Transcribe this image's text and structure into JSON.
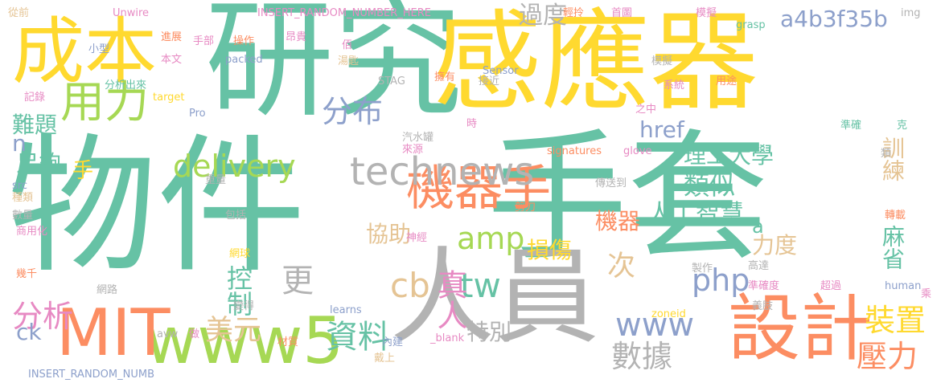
{
  "palette": {
    "teal": "#66c2a5",
    "yellow": "#ffd92f",
    "orange": "#fc8d62",
    "gray": "#b3b3b3",
    "green": "#a6d854",
    "blue": "#8da0cb",
    "pink": "#e78ac3",
    "tan": "#e5c494"
  },
  "words": [
    {
      "text": "物件",
      "color": "#66c2a5"
    },
    {
      "text": "手套",
      "color": "#66c2a5"
    },
    {
      "text": "研究",
      "color": "#66c2a5"
    },
    {
      "text": "感應器",
      "color": "#ffd92f"
    },
    {
      "text": "人員",
      "color": "#b3b3b3"
    },
    {
      "text": "成本",
      "color": "#ffd92f"
    },
    {
      "text": "設計",
      "color": "#fc8d62"
    },
    {
      "text": "www5",
      "color": "#a6d854"
    },
    {
      "text": "MIT",
      "color": "#fc8d62"
    },
    {
      "text": "機器手",
      "color": "#fc8d62"
    },
    {
      "text": "technews",
      "color": "#b3b3b3"
    },
    {
      "text": "用力",
      "color": "#a6d854"
    },
    {
      "text": "分布",
      "color": "#8da0cb"
    },
    {
      "text": "delivery",
      "color": "#a6d854"
    },
    {
      "text": "www",
      "color": "#8da0cb"
    },
    {
      "text": "a4b3f35b",
      "color": "#8da0cb"
    },
    {
      "text": "過度",
      "color": "#b3b3b3"
    },
    {
      "text": "href",
      "color": "#8da0cb"
    },
    {
      "text": "php",
      "color": "#8da0cb"
    },
    {
      "text": "amp",
      "color": "#a6d854"
    },
    {
      "text": "tw",
      "color": "#66c2a5"
    },
    {
      "text": "cb",
      "color": "#e5c494"
    },
    {
      "text": "資料",
      "color": "#66c2a5"
    },
    {
      "text": "數據",
      "color": "#b3b3b3"
    },
    {
      "text": "裝置",
      "color": "#ffd92f"
    },
    {
      "text": "壓力",
      "color": "#fc8d62"
    },
    {
      "text": "美元",
      "color": "#e5c494"
    },
    {
      "text": "分析",
      "color": "#e78ac3"
    },
    {
      "text": "更",
      "color": "#b3b3b3"
    },
    {
      "text": "類似",
      "color": "#66c2a5"
    },
    {
      "text": "理工大學",
      "color": "#66c2a5"
    },
    {
      "text": "人工智慧",
      "color": "#66c2a5"
    },
    {
      "text": "機器",
      "color": "#fc8d62"
    },
    {
      "text": "真人",
      "color": "#e78ac3"
    },
    {
      "text": "次",
      "color": "#e5c494"
    },
    {
      "text": "控制",
      "color": "#66c2a5"
    },
    {
      "text": "損傷",
      "color": "#ffd92f"
    },
    {
      "text": "協助",
      "color": "#e5c494"
    },
    {
      "text": "力度",
      "color": "#e5c494"
    },
    {
      "text": "麻省",
      "color": "#66c2a5"
    },
    {
      "text": "訓練",
      "color": "#e5c494"
    },
    {
      "text": "難題",
      "color": "#66c2a5"
    },
    {
      "text": "足夠",
      "color": "#66c2a5"
    },
    {
      "text": "特別",
      "color": "#b3b3b3"
    },
    {
      "text": "ck",
      "color": "#8da0cb"
    },
    {
      "text": "n",
      "color": "#8da0cb"
    },
    {
      "text": "手",
      "color": "#ffd92f"
    },
    {
      "text": "a",
      "color": "#66c2a5"
    },
    {
      "text": "從前",
      "color": "#e5c494"
    },
    {
      "text": "Unwire",
      "color": "#e78ac3"
    },
    {
      "text": "INSERT_RANDOM_NUMBER_HERE",
      "color": "#e78ac3"
    },
    {
      "text": "輕拎",
      "color": "#fc8d62"
    },
    {
      "text": "首圖",
      "color": "#e78ac3"
    },
    {
      "text": "模擬",
      "color": "#e78ac3"
    },
    {
      "text": "grasp",
      "color": "#66c2a5"
    },
    {
      "text": "img",
      "color": "#b3b3b3"
    },
    {
      "text": "進展",
      "color": "#fc8d62"
    },
    {
      "text": "手部",
      "color": "#e78ac3"
    },
    {
      "text": "操作",
      "color": "#fc8d62"
    },
    {
      "text": "昂貴",
      "color": "#e78ac3"
    },
    {
      "text": "佰",
      "color": "#e78ac3"
    },
    {
      "text": "小型",
      "color": "#8da0cb"
    },
    {
      "text": "本文",
      "color": "#e78ac3"
    },
    {
      "text": "packed",
      "color": "#8da0cb"
    },
    {
      "text": "湯匙",
      "color": "#e5c494"
    },
    {
      "text": "Sensor",
      "color": "#8da0cb"
    },
    {
      "text": "模擬",
      "color": "#b3b3b3"
    },
    {
      "text": "分析出來",
      "color": "#66c2a5"
    },
    {
      "text": "STAG",
      "color": "#b3b3b3"
    },
    {
      "text": "擁有",
      "color": "#fc8d62"
    },
    {
      "text": "接近",
      "color": "#b3b3b3"
    },
    {
      "text": "系統",
      "color": "#e78ac3"
    },
    {
      "text": "用途",
      "color": "#fc8d62"
    },
    {
      "text": "記錄",
      "color": "#e78ac3"
    },
    {
      "text": "target",
      "color": "#ffd92f"
    },
    {
      "text": "Pro",
      "color": "#8da0cb"
    },
    {
      "text": "之中",
      "color": "#e78ac3"
    },
    {
      "text": "時",
      "color": "#e78ac3"
    },
    {
      "text": "準確",
      "color": "#66c2a5"
    },
    {
      "text": "克",
      "color": "#66c2a5"
    },
    {
      "text": "汽水罐",
      "color": "#b3b3b3"
    },
    {
      "text": "來源",
      "color": "#e78ac3"
    },
    {
      "text": "signatures",
      "color": "#fc8d62"
    },
    {
      "text": "glove",
      "color": "#e78ac3"
    },
    {
      "text": "類",
      "color": "#b3b3b3"
    },
    {
      "text": "src",
      "color": "#8da0cb"
    },
    {
      "text": "種類",
      "color": "#e5c494"
    },
    {
      "text": "重量",
      "color": "#b3b3b3"
    },
    {
      "text": "傳送到",
      "color": "#b3b3b3"
    },
    {
      "text": "數量",
      "color": "#b3b3b3"
    },
    {
      "text": "包括",
      "color": "#b3b3b3"
    },
    {
      "text": "剪刀",
      "color": "#fc8d62"
    },
    {
      "text": "轉載",
      "color": "#fc8d62"
    },
    {
      "text": "商用化",
      "color": "#e78ac3"
    },
    {
      "text": "神經",
      "color": "#e78ac3"
    },
    {
      "text": "網球",
      "color": "#ffd92f"
    },
    {
      "text": "幾千",
      "color": "#fc8d62"
    },
    {
      "text": "製作",
      "color": "#b3b3b3"
    },
    {
      "text": "高達",
      "color": "#b3b3b3"
    },
    {
      "text": "網路",
      "color": "#b3b3b3"
    },
    {
      "text": "準確度",
      "color": "#e78ac3"
    },
    {
      "text": "超過",
      "color": "#e78ac3"
    },
    {
      "text": "human",
      "color": "#8da0cb"
    },
    {
      "text": "變得",
      "color": "#b3b3b3"
    },
    {
      "text": "zoneid",
      "color": "#ffd92f"
    },
    {
      "text": "義肢",
      "color": "#b3b3b3"
    },
    {
      "text": "乘",
      "color": "#e78ac3"
    },
    {
      "text": "learns",
      "color": "#8da0cb"
    },
    {
      "text": "avw",
      "color": "#b3b3b3"
    },
    {
      "text": "做",
      "color": "#e78ac3"
    },
    {
      "text": "材質",
      "color": "#fc8d62"
    },
    {
      "text": "內建",
      "color": "#8da0cb"
    },
    {
      "text": "_blank",
      "color": "#e78ac3"
    },
    {
      "text": "戴上",
      "color": "#e5c494"
    },
    {
      "text": "INSERT_RANDOM_NUMB",
      "color": "#8da0cb"
    }
  ]
}
